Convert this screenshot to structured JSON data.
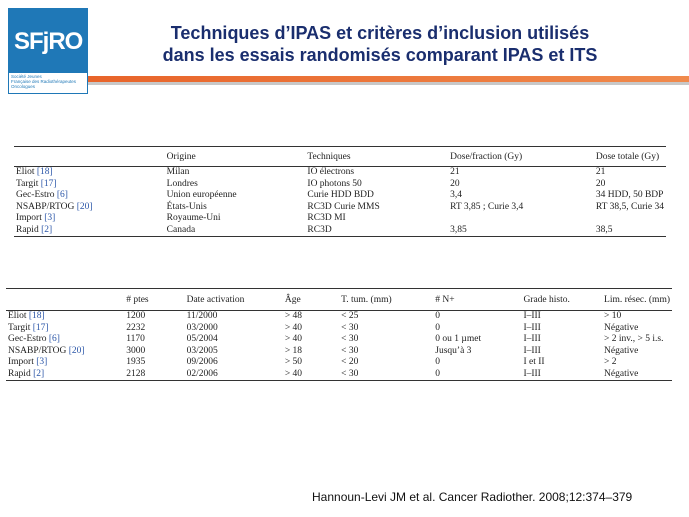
{
  "logo": {
    "text": "SFjRO",
    "line1": "Société Jeunes",
    "line2": "Française des Radiothérapeutes",
    "line3": "Oncologues"
  },
  "title": {
    "line1": "Techniques d’IPAS et critères d’inclusion utilisés",
    "line2": "dans les essais randomisés comparant IPAS et ITS"
  },
  "table1": {
    "headers": [
      "",
      "Origine",
      "Techniques",
      "Dose/fraction (Gy)",
      "Dose totale (Gy)"
    ],
    "rows": [
      {
        "name": "Eliot",
        "ref": "[18]",
        "origine": "Milan",
        "technique": "IO électrons",
        "dosefrac": "21",
        "dosetot": "21"
      },
      {
        "name": "Targit",
        "ref": "[17]",
        "origine": "Londres",
        "technique": "IO photons 50",
        "dosefrac": "20",
        "dosetot": "20"
      },
      {
        "name": "Gec-Estro",
        "ref": "[6]",
        "origine": "Union européenne",
        "technique": "Curie HDD BDD",
        "dosefrac": "3,4",
        "dosetot": "34 HDD, 50 BDP"
      },
      {
        "name": "NSABP/RTOG",
        "ref": "[20]",
        "origine": "États-Unis",
        "technique": "RC3D Curie MMS",
        "dosefrac": "RT 3,85 ; Curie 3,4",
        "dosetot": "RT 38,5, Curie 34"
      },
      {
        "name": "Import",
        "ref": "[3]",
        "origine": "Royaume-Uni",
        "technique": "RC3D MI",
        "dosefrac": "",
        "dosetot": ""
      },
      {
        "name": "Rapid",
        "ref": "[2]",
        "origine": "Canada",
        "technique": "RC3D",
        "dosefrac": "3,85",
        "dosetot": "38,5"
      }
    ]
  },
  "table2": {
    "headers": [
      "",
      "# ptes",
      "Date activation",
      "Âge",
      "T. tum. (mm)",
      "# N+",
      "Grade histo.",
      "Lim. résec. (mm)"
    ],
    "rows": [
      {
        "name": "Eliot",
        "ref": "[18]",
        "ptes": "1200",
        "date": "11/2000",
        "age": "> 48",
        "ttum": "< 25",
        "n": "0",
        "grade": "I–III",
        "lim": "> 10"
      },
      {
        "name": "Targit",
        "ref": "[17]",
        "ptes": "2232",
        "date": "03/2000",
        "age": "> 40",
        "ttum": "< 30",
        "n": "0",
        "grade": "I–III",
        "lim": "Négative"
      },
      {
        "name": "Gec-Estro",
        "ref": "[6]",
        "ptes": "1170",
        "date": "05/2004",
        "age": "> 40",
        "ttum": "< 30",
        "n": "0 ou 1 µmet",
        "grade": "I–III",
        "lim": "> 2 inv., > 5 i.s."
      },
      {
        "name": "NSABP/RTOG",
        "ref": "[20]",
        "ptes": "3000",
        "date": "03/2005",
        "age": "> 18",
        "ttum": "< 30",
        "n": "Jusqu’à 3",
        "grade": "I–III",
        "lim": "Négative"
      },
      {
        "name": "Import",
        "ref": "[3]",
        "ptes": "1935",
        "date": "09/2006",
        "age": "> 50",
        "ttum": "< 20",
        "n": "0",
        "grade": "I et II",
        "lim": "> 2"
      },
      {
        "name": "Rapid",
        "ref": "[2]",
        "ptes": "2128",
        "date": "02/2006",
        "age": "> 40",
        "ttum": "< 30",
        "n": "0",
        "grade": "I–III",
        "lim": "Négative"
      }
    ]
  },
  "citation": "Hannoun-Levi JM et al. Cancer Radiother. 2008;12:374–379",
  "colors": {
    "title": "#1a2e6e",
    "accent": "#e8642a",
    "logo": "#1f78b7",
    "ref": "#2b56a8"
  }
}
